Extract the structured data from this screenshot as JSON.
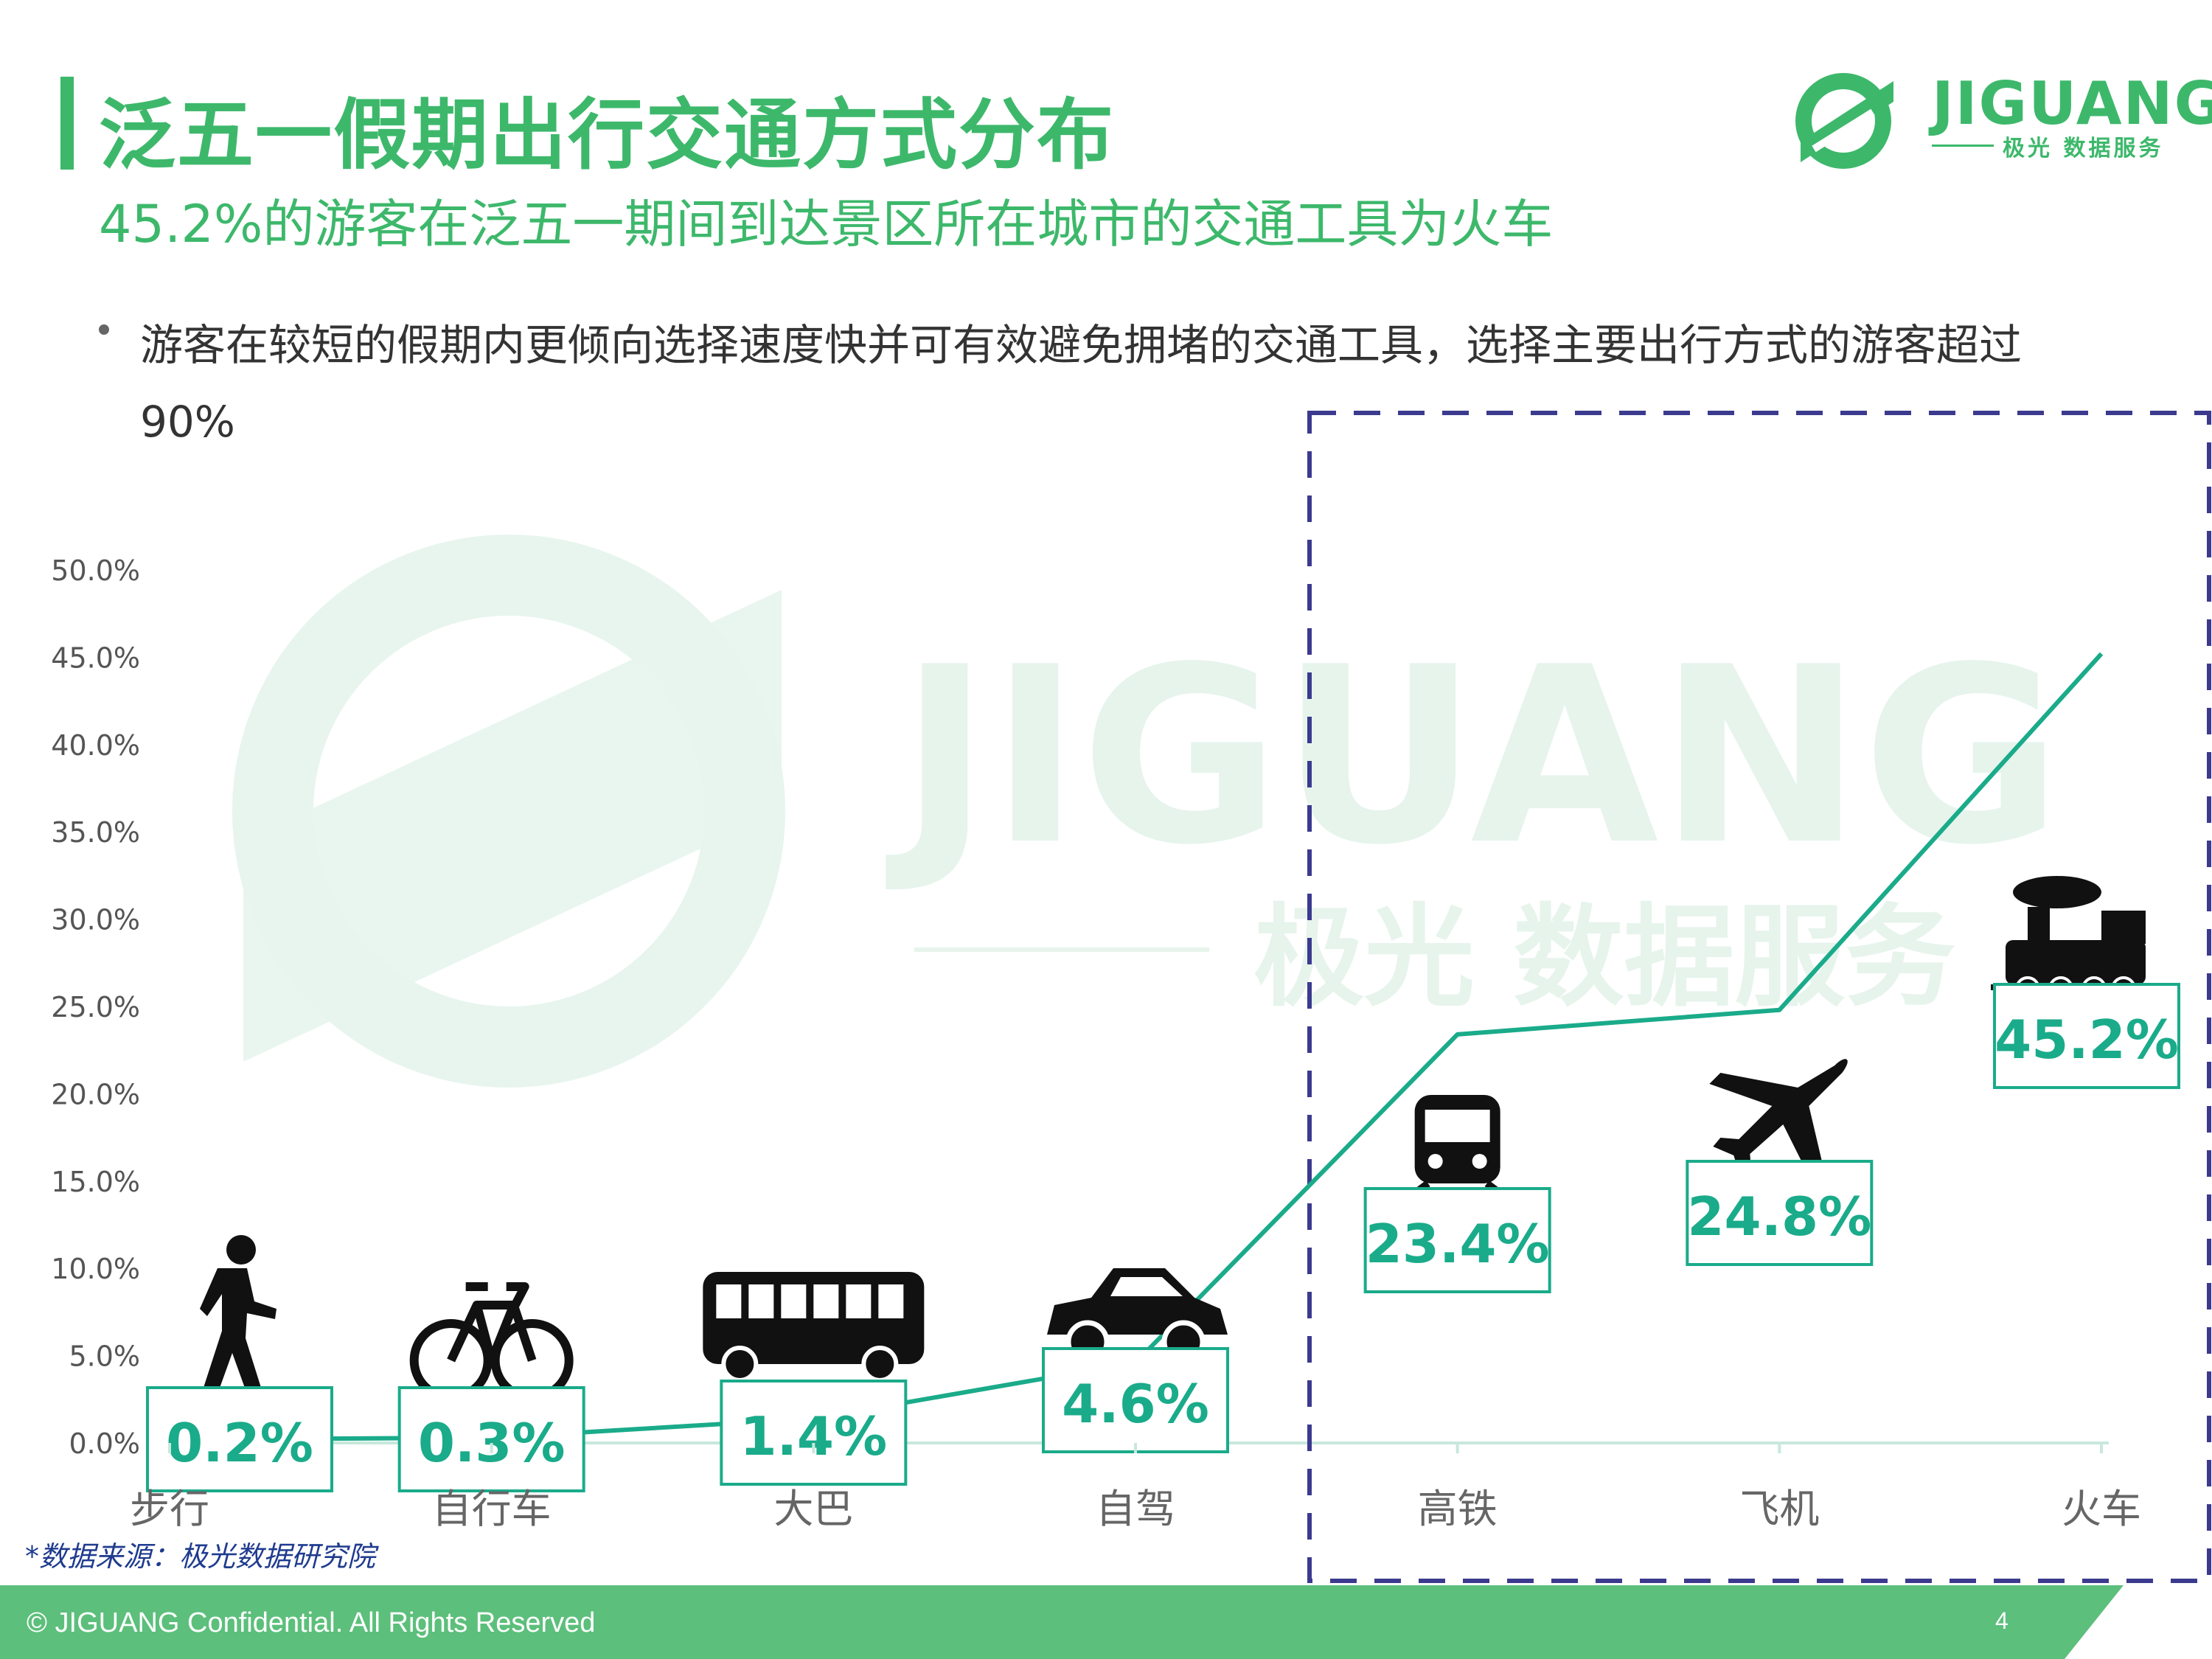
{
  "title": "泛五一假期出行交通方式分布",
  "subtitle": "45.2%的游客在泛五一期间到达景区所在城市的交通工具为火车",
  "bullet": "游客在较短的假期内更倾向选择速度快并可有效避免拥堵的交通工具，选择主要出行方式的游客超过90%",
  "logo": {
    "name": "JIGUANG",
    "sub": "极光 数据服务"
  },
  "source": "*数据来源：极光数据研究院",
  "footer": {
    "copyright": "© JIGUANG Confidential. All Rights Reserved",
    "page": "4"
  },
  "colors": {
    "brand_green": "#3db86b",
    "line": "#1aab8a",
    "highlight_box": "#3b3a8f",
    "footer_green": "#5cbf7b"
  },
  "chart_data": {
    "type": "line",
    "categories": [
      "步行",
      "自行车",
      "大巴",
      "自驾",
      "高铁",
      "飞机",
      "火车"
    ],
    "values": [
      0.2,
      0.3,
      1.4,
      4.6,
      23.4,
      24.8,
      45.2
    ],
    "data_labels": [
      "0.2%",
      "0.3%",
      "1.4%",
      "4.6%",
      "23.4%",
      "24.8%",
      "45.2%"
    ],
    "icons": [
      "walking-person-icon",
      "bicycle-icon",
      "bus-icon",
      "car-icon",
      "high-speed-train-icon",
      "airplane-icon",
      "steam-train-icon"
    ],
    "yticks": [
      "0.0%",
      "5.0%",
      "10.0%",
      "15.0%",
      "20.0%",
      "25.0%",
      "30.0%",
      "35.0%",
      "40.0%",
      "45.0%",
      "50.0%"
    ],
    "ylim": [
      0,
      50
    ],
    "highlighted_categories": [
      "高铁",
      "飞机",
      "火车"
    ],
    "grid": false,
    "legend": "none"
  }
}
